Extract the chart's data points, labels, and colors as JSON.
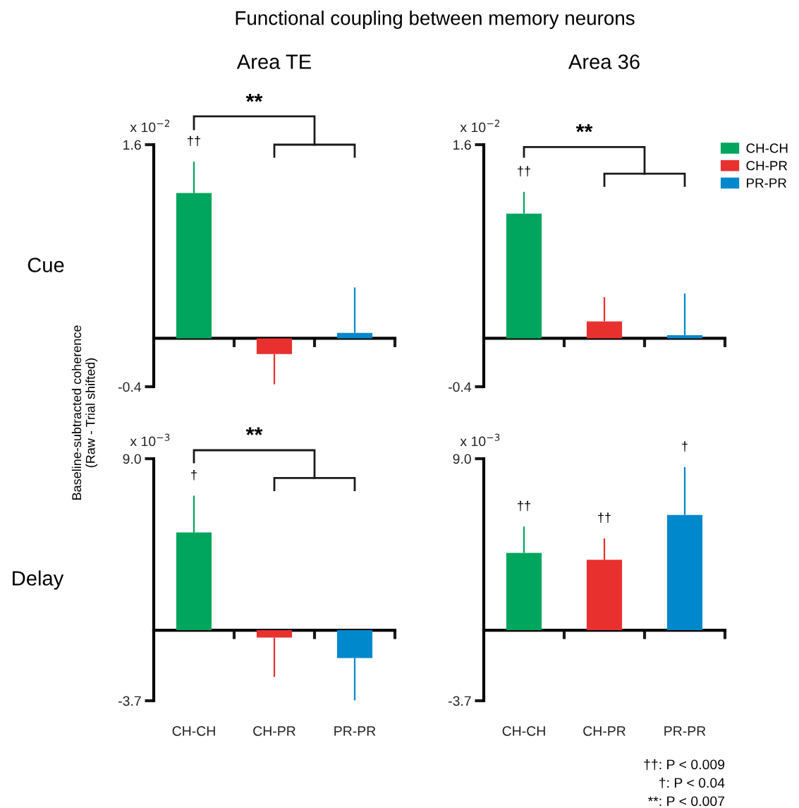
{
  "chart_data": [
    {
      "type": "bar",
      "title": "Area TE",
      "ylabel": "Cue",
      "categories": [
        "CH-CH",
        "CH-PR",
        "PR-PR"
      ],
      "values": [
        1.2,
        -0.13,
        0.044
      ],
      "colors": [
        "#00a65d",
        "#e8312f",
        "#0088cc"
      ],
      "errors": [
        [
          1.2,
          1.46
        ],
        [
          -0.38,
          -0.13
        ],
        [
          0.044,
          0.42
        ]
      ],
      "ylim": [
        -0.4,
        1.6
      ],
      "yticks": [
        1.6,
        -0.4
      ],
      "tick_labels": "y",
      "annotations": [
        "x 10$^{−2}$",
        "**",
        "Functional coupling between memory neurons",
        "Baseline-subtracted coherence\n(Raw - Trial shifted)",
        {
          "text": "††",
          "x": "CH-CH",
          "y": 1.46
        }
      ]
    },
    {
      "type": "bar",
      "title": "Area 36",
      "categories": [
        "CH-CH",
        "CH-PR",
        "PR-PR"
      ],
      "series": [
        {
          "name": "CH-CH",
          "color": "#00a65d",
          "values": [
            1.03,
            null,
            null
          ],
          "errors": [
            [
              1.03,
              1.21
            ],
            null,
            null
          ]
        },
        {
          "name": "CH-PR",
          "color": "#e8312f",
          "values": [
            null,
            0.14,
            null
          ],
          "errors": [
            null,
            [
              0.14,
              0.34
            ],
            null
          ]
        },
        {
          "name": "PR-PR",
          "color": "#0088cc",
          "values": [
            null,
            null,
            0.025
          ],
          "errors": [
            null,
            null,
            [
              0.025,
              0.37
            ]
          ]
        }
      ],
      "ylim": [
        -0.4,
        1.6
      ],
      "yticks": [
        1.6,
        -0.4
      ],
      "tick_labels": "y",
      "legend": "right",
      "annotations": [
        "x 10$^{−2}$",
        "**",
        {
          "text": "††",
          "x": "CH-CH",
          "y": 1.21
        }
      ]
    },
    {
      "type": "bar",
      "ylabel": "Delay",
      "categories": [
        "CH-CH",
        "CH-PR",
        "PR-PR"
      ],
      "values": [
        5.13,
        -0.39,
        -1.46
      ],
      "colors": [
        "#00a65d",
        "#e8312f",
        "#0088cc"
      ],
      "errors": [
        [
          5.13,
          7.06
        ],
        [
          -2.45,
          -0.39
        ],
        [
          -3.68,
          -1.46
        ]
      ],
      "ylim": [
        -3.7,
        9.0
      ],
      "yticks": [
        {
          "value": 9.0,
          "label": "9.0"
        },
        -3.7
      ],
      "annotations": [
        "x 10$^{−3}$",
        "**",
        {
          "text": "†",
          "x": "CH-CH",
          "y": 7.06
        }
      ]
    },
    {
      "type": "bar",
      "categories": [
        "CH-CH",
        "CH-PR",
        "PR-PR"
      ],
      "values": [
        4.06,
        3.7,
        6.05
      ],
      "colors": [
        "#00a65d",
        "#e8312f",
        "#0088cc"
      ],
      "errors": [
        [
          4.06,
          5.44
        ],
        [
          3.7,
          4.82
        ],
        [
          6.05,
          8.56
        ]
      ],
      "ylim": [
        -3.7,
        9.0
      ],
      "yticks": [
        {
          "value": 9.0,
          "label": "9.0"
        },
        -3.7
      ],
      "annotations": [
        "x 10$^{−3}$",
        "††: P < 0.009",
        "†: P < 0.04",
        "**: P < 0.007",
        {
          "text": "††",
          "x": "CH-CH",
          "y": 5.44
        },
        {
          "text": "††",
          "x": "CH-PR",
          "y": 4.82
        },
        {
          "text": "†",
          "x": "PR-PR",
          "y": 8.56
        }
      ]
    }
  ]
}
